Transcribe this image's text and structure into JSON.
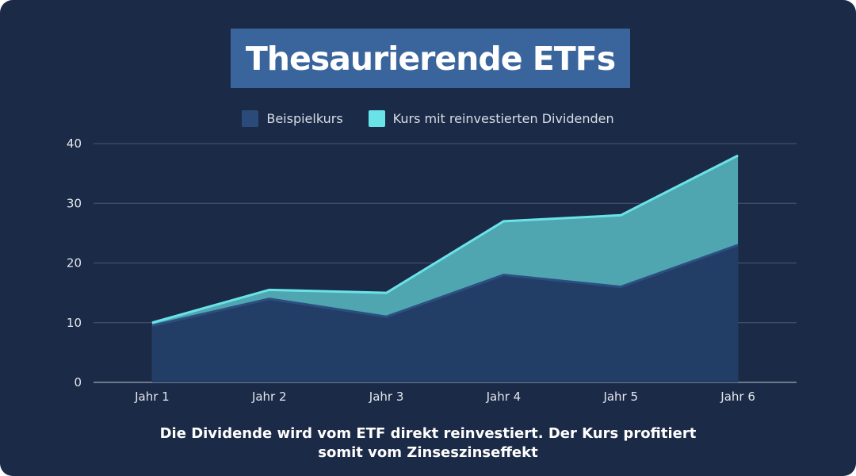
{
  "title": "Thesaurierende ETFs",
  "legend": [
    {
      "label": "Beispielkurs",
      "color": "#2a4a7a"
    },
    {
      "label": "Kurs mit reinvestierten Dividenden",
      "color": "#6ae3e8"
    }
  ],
  "caption": {
    "line1": "Die Dividende wird vom ETF direkt reinvestiert. Der Kurs profitiert",
    "line2": "somit vom Zinseszinseffekt"
  },
  "colors": {
    "background": "#1b2a46",
    "title_box": "#3a659c",
    "base_area": "#233e66",
    "base_line": "#2c4f82",
    "top_area": "#4fa6b0",
    "top_line": "#6ae3e8",
    "grid": "#4a5874"
  },
  "chart_data": {
    "type": "area",
    "title": "Thesaurierende ETFs",
    "categories": [
      "Jahr 1",
      "Jahr 2",
      "Jahr 3",
      "Jahr 4",
      "Jahr 5",
      "Jahr 6"
    ],
    "series": [
      {
        "name": "Beispielkurs",
        "values": [
          9.5,
          14,
          11,
          18,
          16,
          23
        ]
      },
      {
        "name": "Kurs mit reinvestierten Dividenden",
        "values": [
          10,
          15.5,
          15,
          27,
          28,
          38
        ]
      }
    ],
    "xlabel": "",
    "ylabel": "",
    "ylim": [
      0,
      40
    ],
    "yticks": [
      0,
      10,
      20,
      30,
      40
    ],
    "grid": true,
    "legend_position": "top"
  }
}
